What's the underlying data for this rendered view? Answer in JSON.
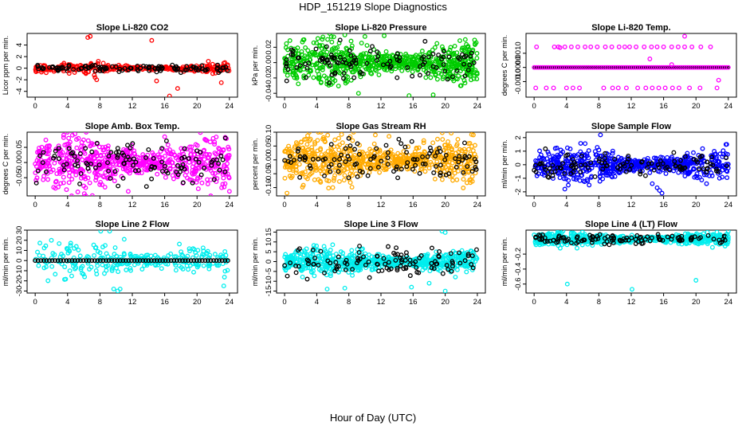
{
  "title": "HDP_151219  Slope Diagnostics",
  "xlabel": "Hour of Day (UTC)",
  "chart_data": [
    {
      "type": "scatter",
      "title": "Slope Li-820 CO2",
      "ylabel": "Licor ppm per min.",
      "color": "#ff0000",
      "xlim": [
        -1,
        25
      ],
      "ylim": [
        -5,
        6
      ],
      "xticks": [
        0,
        4,
        8,
        12,
        16,
        20,
        24
      ],
      "yticks": [
        -4,
        -2,
        0,
        2,
        4
      ],
      "ytick_labels": [
        "-4",
        "-2",
        "0",
        "2",
        "4"
      ],
      "spread": 0.35,
      "n_color": 300,
      "n_black": 110,
      "black_spread": 0.3,
      "outliers": [
        [
          6.5,
          5.3
        ],
        [
          6.8,
          5.5
        ],
        [
          14.4,
          4.8
        ],
        [
          6.2,
          -0.8
        ],
        [
          7.4,
          -1.6
        ],
        [
          7.6,
          -2
        ],
        [
          7.3,
          -1.2
        ],
        [
          7.8,
          1.2
        ],
        [
          15,
          -2.2
        ],
        [
          16.6,
          -4.8
        ],
        [
          17.6,
          -3.5
        ],
        [
          23.0,
          -2.5
        ],
        [
          21.4,
          1.2
        ],
        [
          4.2,
          -0.9
        ]
      ]
    },
    {
      "type": "scatter",
      "title": "Slope Li-820 Pressure",
      "ylabel": "kPa per min.",
      "color": "#00cc00",
      "xlim": [
        -1,
        25
      ],
      "ylim": [
        -0.045,
        0.038
      ],
      "xticks": [
        0,
        4,
        8,
        12,
        16,
        20,
        24
      ],
      "yticks": [
        -0.04,
        -0.02,
        0,
        0.02
      ],
      "ytick_labels": [
        "-0.04",
        "-0.02",
        "0.00",
        "0.02"
      ],
      "spread": 0.013,
      "n_color": 700,
      "n_black": 110,
      "black_spread": 0.01,
      "outliers": [
        [
          10,
          0.034
        ],
        [
          7.5,
          0.036
        ],
        [
          12.4,
          0.035
        ],
        [
          15.5,
          -0.043
        ],
        [
          18.5,
          -0.042
        ],
        [
          9.2,
          -0.04
        ],
        [
          22.5,
          0.03
        ]
      ]
    },
    {
      "type": "scatter",
      "title": "Slope Li-820 Temp.",
      "ylabel": "degrees C per min.",
      "color": "#ff00ff",
      "xlim": [
        -1,
        25
      ],
      "ylim": [
        -0.0021,
        0.0024
      ],
      "xticks": [
        0,
        4,
        8,
        12,
        16,
        20,
        24
      ],
      "yticks": [
        -0.001,
        0,
        0.001
      ],
      "ytick_labels": [
        "-0.0010",
        "0.0000",
        "0.0010"
      ],
      "spread": 0,
      "n_color": 0,
      "n_black": 0,
      "black_spread": 0,
      "dotted_line": [
        0,
        24,
        0,
        0.25
      ],
      "upper_dots": {
        "y": 0.00145,
        "x": [
          0.3,
          2.5,
          3.0,
          3.8,
          4.6,
          5.4,
          6.3,
          7.0,
          7.8,
          8.8,
          9.6,
          10.5,
          11.2,
          11.8,
          12.6,
          13.6,
          14.5,
          15.2,
          16.0,
          17.0,
          17.8,
          18.6,
          19.5,
          20.6,
          21.8
        ]
      },
      "lower_dots": {
        "y": -0.00145,
        "x": [
          0.2,
          1.5,
          2.4,
          4.0,
          4.8,
          5.6,
          8.6,
          9.7,
          10.4,
          11.4,
          12.8,
          13.8,
          14.6,
          15.4,
          16.2,
          17.1,
          17.9,
          19.2,
          20.5,
          22.6
        ]
      },
      "outliers": [
        [
          18.6,
          0.0022
        ],
        [
          14.3,
          0.0006
        ],
        [
          22.8,
          -0.0009
        ],
        [
          3.2,
          0.0014
        ],
        [
          17.0,
          0.0002
        ]
      ]
    },
    {
      "type": "scatter",
      "title": "Slope Amb. Box Temp.",
      "ylabel": "degrees C per min.",
      "color": "#ff00ff",
      "xlim": [
        -1,
        25
      ],
      "ylim": [
        -0.11,
        0.1
      ],
      "xticks": [
        0,
        4,
        8,
        12,
        16,
        20,
        24
      ],
      "yticks": [
        -0.05,
        0,
        0.05
      ],
      "ytick_labels": [
        "-0.05",
        "0.00",
        "0.05"
      ],
      "spread": 0.04,
      "n_color": 650,
      "n_black": 110,
      "black_spread": 0.035,
      "outliers": [
        [
          4.6,
          0.09
        ],
        [
          16,
          0.085
        ],
        [
          11.5,
          -0.095
        ],
        [
          24,
          -0.095
        ],
        [
          2.5,
          -0.085
        ]
      ]
    },
    {
      "type": "scatter",
      "title": "Slope Gas Stream RH",
      "ylabel": "percent per min.",
      "color": "#ffaa00",
      "xlim": [
        -1,
        25
      ],
      "ylim": [
        -0.13,
        0.1
      ],
      "xticks": [
        0,
        4,
        8,
        12,
        16,
        20,
        24
      ],
      "yticks": [
        -0.1,
        -0.05,
        0,
        0.05,
        0.1
      ],
      "ytick_labels": [
        "-0.10",
        "-0.05",
        "0.00",
        "0.05",
        "0.10"
      ],
      "spread": 0.04,
      "n_color": 650,
      "n_black": 110,
      "black_spread": 0.035,
      "outliers": [
        [
          0.3,
          -0.12
        ],
        [
          6,
          -0.1
        ],
        [
          11.3,
          0.09
        ],
        [
          13,
          0.085
        ],
        [
          23.5,
          0.09
        ]
      ]
    },
    {
      "type": "scatter",
      "title": "Slope Sample Flow",
      "ylabel": "ml/min per min.",
      "color": "#0000ff",
      "xlim": [
        -1,
        25
      ],
      "ylim": [
        -2.3,
        2.4
      ],
      "xticks": [
        0,
        4,
        8,
        12,
        16,
        20,
        24
      ],
      "yticks": [
        -2,
        -1,
        0,
        1,
        2
      ],
      "ytick_labels": [
        "-2",
        "-1",
        "0",
        "1",
        "2"
      ],
      "spread": 0.55,
      "n_color": 600,
      "n_black": 110,
      "black_spread": 0.4,
      "outliers": [
        [
          8.2,
          2.2
        ],
        [
          15.5,
          -1.9
        ],
        [
          15.8,
          -2.1
        ],
        [
          14.6,
          -1.4
        ],
        [
          6.8,
          -1.5
        ],
        [
          15.2,
          -1.7
        ],
        [
          23.8,
          1.5
        ]
      ]
    },
    {
      "type": "scatter",
      "title": "Slope Line 2 Flow",
      "ylabel": "ml/min per min.",
      "color": "#00eeee",
      "xlim": [
        -1,
        25
      ],
      "ylim": [
        -32,
        30
      ],
      "xticks": [
        0,
        4,
        8,
        12,
        16,
        20,
        24
      ],
      "yticks": [
        -30,
        -20,
        -10,
        0,
        10,
        20,
        30
      ],
      "ytick_labels": [
        "-30",
        "-20",
        "-10",
        "0",
        "10",
        "20",
        "30"
      ],
      "spread": 8,
      "n_color": 280,
      "n_black": 0,
      "black_spread": 0,
      "black_line": [
        0,
        24,
        0,
        0.35
      ],
      "outliers": [
        [
          8.1,
          29
        ],
        [
          9.2,
          29
        ],
        [
          9.7,
          -28
        ],
        [
          10.2,
          -30
        ],
        [
          10.5,
          -28
        ],
        [
          23.3,
          -25
        ],
        [
          2,
          20
        ],
        [
          11,
          21
        ]
      ]
    },
    {
      "type": "scatter",
      "title": "Slope Line 3 Flow",
      "ylabel": "ml/min per min.",
      "color": "#00eeee",
      "xlim": [
        -1,
        25
      ],
      "ylim": [
        -16,
        16
      ],
      "xticks": [
        0,
        4,
        8,
        12,
        16,
        20,
        24
      ],
      "yticks": [
        -15,
        -10,
        -5,
        0,
        5,
        10,
        15
      ],
      "ytick_labels": [
        "-15",
        "-10",
        "-5",
        "0",
        "5",
        "10",
        "15"
      ],
      "spread": 3,
      "n_color": 650,
      "n_black": 110,
      "black_spread": 3.8,
      "outliers": [
        [
          19.6,
          15.5
        ],
        [
          20,
          14.8
        ],
        [
          5.3,
          -14
        ],
        [
          7.5,
          -13.5
        ],
        [
          15.8,
          -13
        ],
        [
          18,
          -11
        ],
        [
          20,
          -15
        ]
      ]
    },
    {
      "type": "scatter",
      "title": "Slope Line 4 (LT) Flow",
      "ylabel": "ml/min per min.",
      "color": "#00eeee",
      "xlim": [
        -1,
        25
      ],
      "ylim": [
        -0.72,
        0.12
      ],
      "xticks": [
        0,
        4,
        8,
        12,
        16,
        20,
        24
      ],
      "yticks": [
        -0.6,
        -0.4,
        -0.2
      ],
      "ytick_labels": [
        "-0.6",
        "-0.4",
        "-0.2"
      ],
      "spread": 0.04,
      "n_color": 650,
      "n_black": 110,
      "black_spread": 0.03,
      "center": 0,
      "outliers": [
        [
          4.1,
          -0.6
        ],
        [
          12.1,
          -0.67
        ],
        [
          20,
          -0.55
        ],
        [
          24,
          0.03
        ]
      ]
    }
  ]
}
